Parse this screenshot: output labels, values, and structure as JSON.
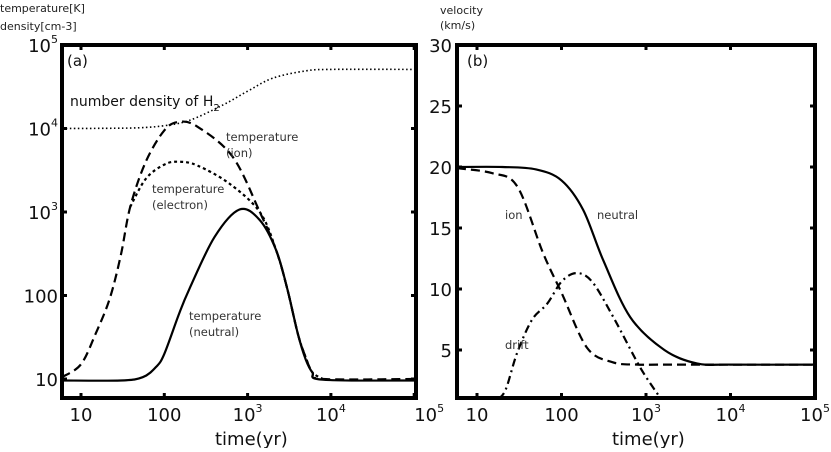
{
  "chart_data": [
    {
      "type": "line",
      "panel_label": "(a)",
      "ylabel_lines": [
        "temperature[K]",
        "density[cm-3]"
      ],
      "xlabel": "time(yr)",
      "xscale": "log",
      "yscale": "log",
      "xlim": [
        5.9,
        100000
      ],
      "ylim": [
        5.9,
        100000
      ],
      "x_ticks": [
        {
          "base": "10",
          "exp": ""
        },
        {
          "base": "100",
          "exp": ""
        },
        {
          "base": "10",
          "exp": "3"
        },
        {
          "base": "10",
          "exp": "4"
        },
        {
          "base": "10",
          "exp": "5"
        }
      ],
      "x_tick_values": [
        10,
        100,
        1000,
        10000,
        100000
      ],
      "y_ticks": [
        {
          "base": "10",
          "exp": ""
        },
        {
          "base": "100",
          "exp": ""
        },
        {
          "base": "10",
          "exp": "3"
        },
        {
          "base": "10",
          "exp": "4"
        },
        {
          "base": "10",
          "exp": "5"
        }
      ],
      "y_tick_values": [
        10,
        100,
        1000,
        10000,
        100000
      ],
      "annotations": {
        "h2": {
          "text": "number density of H",
          "sub": "2"
        },
        "ion": [
          "temperature",
          "(ion)"
        ],
        "electron": [
          "temperature",
          "(electron)"
        ],
        "neutral": [
          "temperature",
          "(neutral)"
        ]
      },
      "series": [
        {
          "name": "number density of H2",
          "style": "dotted",
          "x": [
            5.9,
            20,
            50,
            100,
            200,
            500,
            1000,
            2000,
            5000,
            10000,
            100000
          ],
          "y": [
            10000,
            10050,
            10200,
            10800,
            12500,
            19000,
            28000,
            40000,
            49000,
            51000,
            51000
          ]
        },
        {
          "name": "temperature (ion)",
          "style": "dashed",
          "x": [
            5.9,
            10,
            15,
            22,
            30,
            39,
            60,
            100,
            150,
            250,
            660,
            1400,
            2200,
            3000,
            4000,
            5000,
            6000,
            8000,
            100000
          ],
          "y": [
            10.5,
            15,
            35,
            90,
            300,
            1150,
            4000,
            9500,
            12000,
            10500,
            4600,
            1000,
            350,
            120,
            35,
            18,
            12,
            10,
            10
          ]
        },
        {
          "name": "temperature (electron)",
          "style": "dotted-coarse",
          "x": [
            39,
            60,
            100,
            150,
            250,
            600,
            1400,
            2200,
            3000,
            4000,
            5000,
            6000,
            8000
          ],
          "y": [
            1150,
            2500,
            3700,
            4000,
            3600,
            2200,
            1000,
            350,
            120,
            35,
            18,
            12,
            10
          ]
        },
        {
          "name": "temperature (neutral)",
          "style": "solid",
          "x": [
            5.9,
            30,
            55,
            80,
            100,
            150,
            200,
            400,
            800,
            1400,
            2200,
            3000,
            4000,
            5000,
            6000,
            8000,
            100000
          ],
          "y": [
            9.6,
            9.6,
            10.5,
            14,
            20,
            60,
            120,
            500,
            1070,
            800,
            350,
            120,
            35,
            17,
            12,
            9.8,
            9.6
          ]
        }
      ]
    },
    {
      "type": "line",
      "panel_label": "(b)",
      "ylabel_lines": [
        "velocity",
        "(km/s)"
      ],
      "xlabel": "time(yr)",
      "xscale": "log",
      "yscale": "linear",
      "xlim": [
        5.8,
        100000
      ],
      "ylim": [
        1,
        30
      ],
      "x_ticks": [
        {
          "base": "10",
          "exp": ""
        },
        {
          "base": "100",
          "exp": ""
        },
        {
          "base": "10",
          "exp": "3"
        },
        {
          "base": "10",
          "exp": "4"
        },
        {
          "base": "10",
          "exp": "5"
        }
      ],
      "x_tick_values": [
        10,
        100,
        1000,
        10000,
        100000
      ],
      "y_ticks": [
        {
          "base": "5",
          "exp": ""
        },
        {
          "base": "10",
          "exp": ""
        },
        {
          "base": "15",
          "exp": ""
        },
        {
          "base": "20",
          "exp": ""
        },
        {
          "base": "25",
          "exp": ""
        },
        {
          "base": "30",
          "exp": ""
        }
      ],
      "y_tick_values": [
        5,
        10,
        15,
        20,
        25,
        30
      ],
      "annotations": {
        "ion": "ion",
        "neutral": "neutral",
        "drift": "drift"
      },
      "series": [
        {
          "name": "neutral",
          "style": "solid",
          "x": [
            5.8,
            20,
            50,
            100,
            180,
            310,
            650,
            1650,
            4000,
            10000,
            100000
          ],
          "y": [
            20,
            20,
            19.8,
            18.9,
            16.5,
            12.4,
            7.7,
            5.0,
            3.9,
            3.8,
            3.8
          ]
        },
        {
          "name": "ion",
          "style": "dashed",
          "x": [
            5.8,
            15,
            30,
            60,
            100,
            200,
            400,
            800,
            2000,
            100000
          ],
          "y": [
            19.9,
            19.5,
            18.4,
            13,
            9.7,
            5.2,
            4.0,
            3.8,
            3.8,
            3.8
          ]
        },
        {
          "name": "drift",
          "style": "dashdot",
          "x": [
            18,
            22,
            30,
            45,
            68,
            100,
            150,
            230,
            410,
            850,
            1400
          ],
          "y": [
            1,
            1.8,
            4.8,
            7.5,
            8.8,
            10.6,
            11.3,
            10.6,
            7.7,
            3.6,
            1.3
          ]
        }
      ]
    }
  ]
}
